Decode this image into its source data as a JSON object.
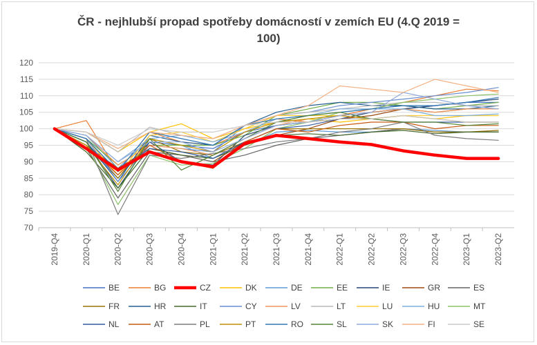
{
  "chart_data": {
    "type": "line",
    "title_lines": [
      "ČR - nejhlubší propad spotřeby domácností v zemích EU (4.Q 2019 =",
      "100)"
    ],
    "xlabel": "",
    "ylabel": "",
    "ylim": [
      70,
      120
    ],
    "yticks": [
      70,
      75,
      80,
      85,
      90,
      95,
      100,
      105,
      110,
      115,
      120
    ],
    "grid": true,
    "legend_position": "bottom",
    "categories": [
      "2019-Q4",
      "2020-Q1",
      "2020-Q2",
      "2020-Q3",
      "2020-Q4",
      "2021-Q1",
      "2021-Q2",
      "2021-Q3",
      "2021-Q4",
      "2022-Q1",
      "2022-Q2",
      "2022-Q3",
      "2022-Q4",
      "2023-Q1",
      "2023-Q2"
    ],
    "series": [
      {
        "name": "BE",
        "color": "#4472c4",
        "values": [
          100,
          96,
          85,
          96,
          95,
          94,
          99,
          101,
          102,
          104,
          105,
          106,
          107,
          108,
          108
        ]
      },
      {
        "name": "BG",
        "color": "#ed7d31",
        "values": [
          100,
          102.5,
          87,
          99,
          96,
          95,
          99,
          103,
          102,
          104,
          106,
          108,
          110,
          112,
          111.5
        ]
      },
      {
        "name": "CZ",
        "color": "#ff0000",
        "bold": true,
        "values": [
          100,
          94,
          87.5,
          93,
          90,
          88.5,
          95.5,
          98,
          97,
          96,
          95.2,
          93.3,
          92,
          91,
          91
        ]
      },
      {
        "name": "DK",
        "color": "#ffc000",
        "values": [
          100,
          99,
          93,
          99,
          101.5,
          97,
          100,
          102,
          103,
          102,
          103,
          104,
          103,
          104,
          104
        ]
      },
      {
        "name": "DE",
        "color": "#5b9bd5",
        "values": [
          100,
          98,
          88,
          97,
          95,
          91,
          95,
          99,
          99.5,
          99,
          99,
          100,
          99.5,
          99,
          99
        ]
      },
      {
        "name": "EE",
        "color": "#70ad47",
        "values": [
          100,
          97,
          89,
          95,
          95,
          95,
          98,
          104,
          106,
          108,
          108,
          107,
          106,
          107,
          108
        ]
      },
      {
        "name": "IE",
        "color": "#264478",
        "values": [
          100,
          96,
          82,
          96,
          90,
          89,
          98,
          101,
          102,
          103,
          105,
          106,
          107,
          108,
          109
        ]
      },
      {
        "name": "GR",
        "color": "#9e480e",
        "values": [
          100,
          95,
          88,
          94,
          92,
          90,
          96,
          98,
          100,
          103,
          104,
          106,
          105,
          106,
          106
        ]
      },
      {
        "name": "ES",
        "color": "#636363",
        "values": [
          100,
          94,
          79,
          93,
          92,
          90,
          92,
          95,
          97,
          98,
          99,
          100,
          99,
          99,
          99
        ]
      },
      {
        "name": "FR",
        "color": "#997300",
        "values": [
          100,
          95,
          85,
          97,
          93,
          92,
          96,
          100,
          100,
          100,
          100,
          100,
          99,
          99,
          99.5
        ]
      },
      {
        "name": "HR",
        "color": "#255e91",
        "values": [
          100,
          96,
          84,
          98,
          96,
          95,
          101,
          105,
          107,
          108,
          107,
          107,
          106,
          106,
          107
        ]
      },
      {
        "name": "IT",
        "color": "#43682b",
        "values": [
          100,
          93,
          82,
          94,
          92,
          91,
          95,
          98,
          98.5,
          98,
          99,
          99.5,
          98.5,
          99,
          99
        ]
      },
      {
        "name": "CY",
        "color": "#698ed0",
        "values": [
          100,
          97,
          84,
          95,
          94,
          93,
          101,
          104,
          105,
          107,
          108,
          109,
          110,
          111,
          112.5
        ]
      },
      {
        "name": "LV",
        "color": "#f1975a",
        "values": [
          100,
          98,
          89,
          95,
          94,
          92,
          97,
          101,
          103,
          104,
          105,
          106,
          105,
          106,
          106
        ]
      },
      {
        "name": "LT",
        "color": "#b7b7b7",
        "values": [
          100,
          99,
          93,
          100.5,
          98,
          97,
          101,
          104,
          105,
          106,
          107,
          108,
          108,
          107,
          107
        ]
      },
      {
        "name": "LU",
        "color": "#ffcd33",
        "values": [
          100,
          97,
          86,
          98,
          99,
          96,
          100,
          104,
          104,
          104,
          103,
          104,
          104,
          104,
          104
        ]
      },
      {
        "name": "HU",
        "color": "#7cafdd",
        "values": [
          100,
          98,
          90,
          97,
          98,
          96,
          99,
          103,
          104,
          106,
          106,
          106,
          104,
          104,
          104.5
        ]
      },
      {
        "name": "MT",
        "color": "#8cc168",
        "values": [
          100,
          95,
          77,
          92,
          89,
          89.5,
          94,
          100,
          102,
          105,
          106,
          108,
          109,
          110,
          110.5
        ]
      },
      {
        "name": "NL",
        "color": "#335aa1",
        "values": [
          100,
          97,
          87,
          94,
          93,
          91,
          96,
          100,
          101,
          103,
          103,
          102,
          102,
          102,
          102
        ]
      },
      {
        "name": "AT",
        "color": "#c65911",
        "values": [
          100,
          95,
          86,
          95,
          90,
          88,
          96,
          100,
          99,
          101,
          102,
          102,
          100,
          101,
          101
        ]
      },
      {
        "name": "PL",
        "color": "#7b7b7b",
        "values": [
          100,
          97,
          74,
          92,
          91,
          92.5,
          94,
          96,
          97,
          99,
          100,
          102,
          98,
          97,
          96.5
        ]
      },
      {
        "name": "PT",
        "color": "#bf9000",
        "values": [
          100,
          95,
          83,
          97,
          95,
          93,
          99,
          102,
          103,
          104,
          103,
          104,
          103,
          102,
          102
        ]
      },
      {
        "name": "RO",
        "color": "#2e75b6",
        "values": [
          100,
          97,
          87,
          99,
          97,
          95,
          101,
          103,
          104,
          105,
          106,
          107,
          107,
          108,
          109.5
        ]
      },
      {
        "name": "SL",
        "color": "#548235",
        "values": [
          100,
          96,
          81,
          97,
          87.5,
          92,
          97,
          102,
          104,
          105,
          103,
          102,
          102,
          101,
          101.5
        ]
      },
      {
        "name": "SK",
        "color": "#8faadc",
        "values": [
          100,
          98,
          90,
          96,
          96,
          93,
          97,
          101,
          102,
          104,
          105,
          111,
          109,
          107,
          106
        ]
      },
      {
        "name": "FI",
        "color": "#f4b183",
        "values": [
          100,
          99,
          94,
          99,
          98,
          97,
          101,
          104,
          107,
          113,
          112,
          111,
          115,
          113,
          111
        ]
      },
      {
        "name": "SE",
        "color": "#c9c9c9",
        "values": [
          100,
          99,
          95,
          100,
          99,
          99,
          101,
          102,
          102,
          103,
          103,
          104,
          103,
          102,
          102
        ]
      }
    ]
  }
}
